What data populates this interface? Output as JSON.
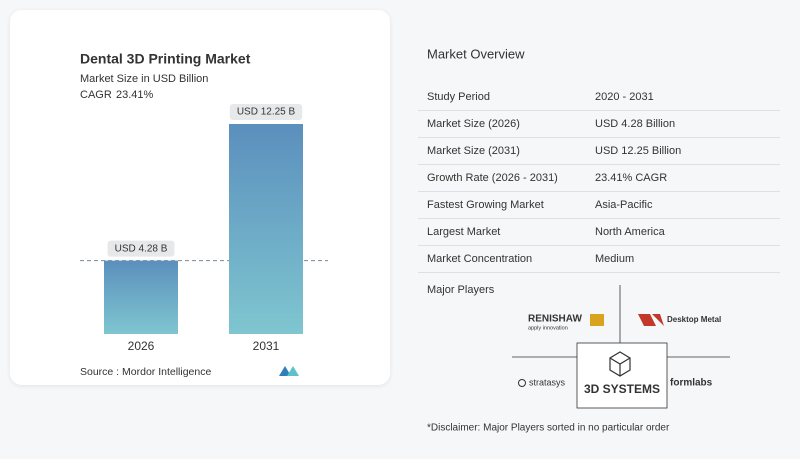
{
  "chart_data": {
    "type": "bar",
    "title": "Dental 3D Printing Market",
    "subtitle": "Market Size in USD Billion",
    "cagr_label": "CAGR",
    "cagr_value": "23.41%",
    "categories": [
      "2026",
      "2031"
    ],
    "values": [
      4.28,
      12.25
    ],
    "value_labels": [
      "USD 4.28 B",
      "USD 12.25 B"
    ],
    "color": "#6aa6c8",
    "source": "Source : Mordor Intelligence"
  },
  "overview": {
    "title": "Market Overview",
    "rows": [
      [
        "Study Period",
        "2020 - 2031"
      ],
      [
        "Market Size (2026)",
        "USD 4.28 Billion"
      ],
      [
        "Market Size (2031)",
        "USD 12.25 Billion"
      ],
      [
        "Growth Rate (2026 - 2031)",
        "23.41% CAGR"
      ],
      [
        "Fastest Growing Market",
        "Asia-Pacific"
      ],
      [
        "Largest Market",
        "North America"
      ],
      [
        "Market Concentration",
        "Medium"
      ]
    ]
  },
  "major_players": {
    "title": "Major Players",
    "logos": [
      "RENISHAW",
      "apply innovation",
      "Desktop Metal",
      "stratasys",
      "3D SYSTEMS",
      "formlabs"
    ]
  },
  "disclaimer": "*Disclaimer: Major Players sorted in no particular order"
}
